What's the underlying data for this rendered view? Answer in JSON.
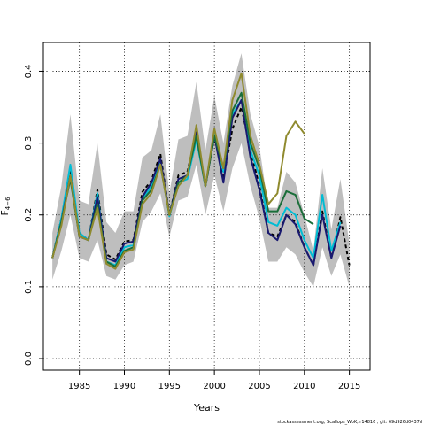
{
  "footer": "stockassessment.org, Scallops_WoK, r14816 , git: 69d926d0437d",
  "chart_data": {
    "type": "line",
    "xlabel": "Years",
    "ylabel_main": "F",
    "ylabel_sub": "4−6",
    "xlim": [
      1981,
      2017.3
    ],
    "ylim": [
      -0.016,
      0.44
    ],
    "xticks": [
      1985,
      1990,
      1995,
      2000,
      2005,
      2010,
      2015
    ],
    "yticks": [
      0.0,
      0.1,
      0.2,
      0.3,
      0.4
    ],
    "ytick_labels": [
      "0.0",
      "0.1",
      "0.2",
      "0.3",
      "0.4"
    ],
    "grid": true,
    "band": {
      "color": "#bebebe",
      "x": [
        1982,
        1983,
        1984,
        1985,
        1986,
        1987,
        1988,
        1989,
        1990,
        1991,
        1992,
        1993,
        1994,
        1995,
        1996,
        1997,
        1998,
        1999,
        2000,
        2001,
        2002,
        2003,
        2004,
        2005,
        2006,
        2007,
        2008,
        2009,
        2010,
        2011,
        2012,
        2013,
        2014,
        2015
      ],
      "upper": [
        0.175,
        0.24,
        0.34,
        0.22,
        0.215,
        0.3,
        0.19,
        0.175,
        0.205,
        0.205,
        0.28,
        0.29,
        0.34,
        0.23,
        0.305,
        0.31,
        0.385,
        0.29,
        0.365,
        0.3,
        0.38,
        0.425,
        0.34,
        0.295,
        0.21,
        0.21,
        0.26,
        0.245,
        0.2,
        0.15,
        0.265,
        0.18,
        0.25,
        0.16
      ],
      "lower": [
        0.11,
        0.15,
        0.2,
        0.14,
        0.135,
        0.165,
        0.115,
        0.11,
        0.13,
        0.135,
        0.19,
        0.205,
        0.23,
        0.17,
        0.22,
        0.225,
        0.27,
        0.2,
        0.255,
        0.205,
        0.265,
        0.3,
        0.24,
        0.195,
        0.135,
        0.135,
        0.155,
        0.145,
        0.12,
        0.1,
        0.155,
        0.115,
        0.145,
        0.1
      ]
    },
    "series": [
      {
        "color": "#000000",
        "dashed": true,
        "x": [
          1982,
          1983,
          1984,
          1985,
          1986,
          1987,
          1988,
          1989,
          1990,
          1991,
          1992,
          1993,
          1994,
          1995,
          1996,
          1997,
          1998,
          1999,
          2000,
          2001,
          2002,
          2003,
          2004,
          2005,
          2006,
          2007,
          2008,
          2009,
          2010,
          2011,
          2012,
          2013,
          2014,
          2015
        ],
        "values": [
          0.14,
          0.195,
          0.26,
          0.175,
          0.165,
          0.235,
          0.145,
          0.138,
          0.163,
          0.165,
          0.232,
          0.248,
          0.285,
          0.2,
          0.255,
          0.26,
          0.315,
          0.24,
          0.31,
          0.25,
          0.32,
          0.35,
          0.29,
          0.24,
          0.175,
          0.17,
          0.2,
          0.19,
          0.155,
          0.13,
          0.205,
          0.14,
          0.197,
          0.13
        ]
      },
      {
        "color": "#00bcd4",
        "x": [
          1982,
          1983,
          1984,
          1985,
          1986,
          1987,
          1988,
          1989,
          1990,
          1991,
          1992,
          1993,
          1994,
          1995,
          1996,
          1997,
          1998,
          1999,
          2000,
          2001,
          2002,
          2003,
          2004,
          2005,
          2006,
          2007,
          2008,
          2009,
          2010,
          2011,
          2012,
          2013,
          2014
        ],
        "values": [
          0.14,
          0.195,
          0.27,
          0.175,
          0.165,
          0.23,
          0.135,
          0.13,
          0.155,
          0.158,
          0.222,
          0.24,
          0.275,
          0.198,
          0.245,
          0.25,
          0.305,
          0.24,
          0.315,
          0.26,
          0.34,
          0.36,
          0.29,
          0.255,
          0.19,
          0.185,
          0.21,
          0.2,
          0.165,
          0.14,
          0.228,
          0.15,
          0.19
        ]
      },
      {
        "color": "#191970",
        "x": [
          1982,
          1983,
          1984,
          1985,
          1986,
          1987,
          1988,
          1989,
          1990,
          1991,
          1992,
          1993,
          1994,
          1995,
          1996,
          1997,
          1998,
          1999,
          2000,
          2001,
          2002,
          2003,
          2004,
          2005,
          2006,
          2007,
          2008,
          2009,
          2010,
          2011,
          2012,
          2013,
          2014
        ],
        "values": [
          0.14,
          0.19,
          0.255,
          0.17,
          0.165,
          0.225,
          0.14,
          0.135,
          0.16,
          0.163,
          0.225,
          0.245,
          0.278,
          0.2,
          0.25,
          0.255,
          0.315,
          0.24,
          0.31,
          0.245,
          0.335,
          0.36,
          0.28,
          0.235,
          0.175,
          0.165,
          0.2,
          0.187,
          0.155,
          0.13,
          0.2,
          0.14,
          0.185
        ]
      },
      {
        "color": "#1b6e3a",
        "x": [
          1982,
          1983,
          1984,
          1985,
          1986,
          1987,
          1988,
          1989,
          1990,
          1991,
          1992,
          1993,
          1994,
          1995,
          1996,
          1997,
          1998,
          1999,
          2000,
          2001,
          2002,
          2003,
          2004,
          2005,
          2006,
          2007,
          2008,
          2009,
          2010,
          2011
        ],
        "values": [
          0.14,
          0.19,
          0.25,
          0.17,
          0.165,
          0.215,
          0.135,
          0.128,
          0.15,
          0.155,
          0.22,
          0.235,
          0.27,
          0.2,
          0.245,
          0.255,
          0.31,
          0.24,
          0.31,
          0.265,
          0.345,
          0.37,
          0.3,
          0.265,
          0.205,
          0.205,
          0.233,
          0.228,
          0.195,
          0.187
        ]
      },
      {
        "color": "#8f8a2e",
        "x": [
          1982,
          1983,
          1984,
          1985,
          1986,
          1987,
          1988,
          1989,
          1990,
          1991,
          1992,
          1993,
          1994,
          1995,
          1996,
          1997,
          1998,
          1999,
          2000,
          2001,
          2002,
          2003,
          2004,
          2005,
          2006,
          2007,
          2008,
          2009,
          2010
        ],
        "values": [
          0.14,
          0.185,
          0.255,
          0.17,
          0.165,
          0.21,
          0.132,
          0.125,
          0.148,
          0.152,
          0.215,
          0.23,
          0.27,
          0.2,
          0.24,
          0.255,
          0.325,
          0.24,
          0.32,
          0.265,
          0.36,
          0.397,
          0.31,
          0.27,
          0.215,
          0.23,
          0.31,
          0.33,
          0.313
        ]
      }
    ]
  }
}
